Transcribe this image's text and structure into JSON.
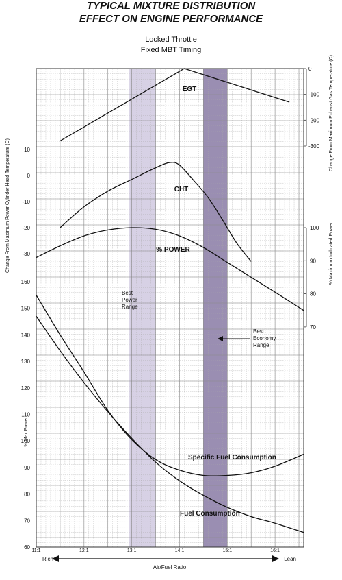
{
  "header": {
    "title_line1": "TYPICAL MIXTURE DISTRIBUTION",
    "title_line2": "EFFECT ON ENGINE PERFORMANCE",
    "subtitle_line1": "Locked Throttle",
    "subtitle_line2": "Fixed MBT Timing"
  },
  "chart_data": {
    "type": "line",
    "x_axis": {
      "label": "Air/Fuel Ratio",
      "range": [
        11,
        16.6
      ],
      "ticks": [
        11,
        12,
        13,
        14,
        15,
        16
      ],
      "tick_labels": [
        "11:1",
        "12:1",
        "13:1",
        "14:1",
        "15:1",
        "16:1"
      ],
      "left_end_label": "Rich",
      "right_end_label": "Lean"
    },
    "y_axes": {
      "egt": {
        "label": "Change From Maximum Exhaust Gas Temperature (C)",
        "side": "right",
        "ticks": [
          0,
          -100,
          -200,
          -300
        ]
      },
      "cht": {
        "label": "Change From Maximum Power Cylinder Head Temperature (C)",
        "side": "left",
        "ticks": [
          10,
          0,
          -10,
          -20,
          -30
        ]
      },
      "power": {
        "label": "% Maximum Indicated Power",
        "side": "right",
        "ticks": [
          100,
          90,
          80,
          70
        ]
      },
      "fuel": {
        "label": "% Max Power",
        "side": "left",
        "ticks": [
          160,
          150,
          140,
          130,
          120,
          110,
          100,
          90,
          80,
          70,
          60
        ]
      }
    },
    "grid": true,
    "bands": [
      {
        "label": "Best Power Range",
        "x_range": [
          12.95,
          13.5
        ],
        "label_lines": [
          "Best",
          "Power",
          "Range"
        ]
      },
      {
        "label": "Best Economy Range",
        "x_range": [
          14.5,
          15.0
        ],
        "label_lines": [
          "Best",
          "Economy",
          "Range"
        ]
      }
    ],
    "series": [
      {
        "name": "EGT",
        "axis": "egt",
        "x": [
          11.5,
          14.1,
          16.3
        ],
        "y": [
          -280,
          0,
          -130
        ]
      },
      {
        "name": "CHT",
        "axis": "cht",
        "x": [
          11.5,
          12.0,
          12.5,
          13.0,
          13.5,
          13.8,
          14.0,
          14.3,
          14.6,
          14.9,
          15.2,
          15.5
        ],
        "y": [
          -20,
          -12,
          -6,
          -1.5,
          3,
          5,
          4,
          -2,
          -8.5,
          -17,
          -26,
          -33
        ]
      },
      {
        "name": "% POWER",
        "axis": "power",
        "x": [
          11.0,
          11.5,
          12.0,
          12.5,
          13.0,
          13.5,
          14.0,
          14.5,
          15.0,
          15.5,
          16.0,
          16.6
        ],
        "y": [
          91,
          94.5,
          97.5,
          99.3,
          100,
          99.5,
          97.5,
          94,
          89.5,
          85,
          80.5,
          75
        ]
      },
      {
        "name": "Specific Fuel Consumption",
        "axis": "fuel",
        "x": [
          11.0,
          11.5,
          12.0,
          12.5,
          13.0,
          13.5,
          14.0,
          14.5,
          15.0,
          15.5,
          16.0,
          16.6
        ],
        "y": [
          155,
          140,
          126,
          111.5,
          100.5,
          93,
          89,
          87,
          87,
          88,
          90.5,
          95
        ]
      },
      {
        "name": "Fuel Consumption",
        "axis": "fuel",
        "x": [
          11.0,
          11.5,
          12.0,
          12.5,
          13.0,
          13.5,
          14.0,
          14.5,
          15.0,
          15.5,
          16.0,
          16.6
        ],
        "y": [
          147,
          134,
          122,
          111,
          101,
          92,
          85,
          79.5,
          75,
          71.5,
          69,
          65.5
        ]
      }
    ],
    "colors": {
      "band_best_power": "#c9c1dc",
      "band_best_economy": "#8f82aa",
      "grid": "#888888",
      "curves": "#111111"
    }
  }
}
